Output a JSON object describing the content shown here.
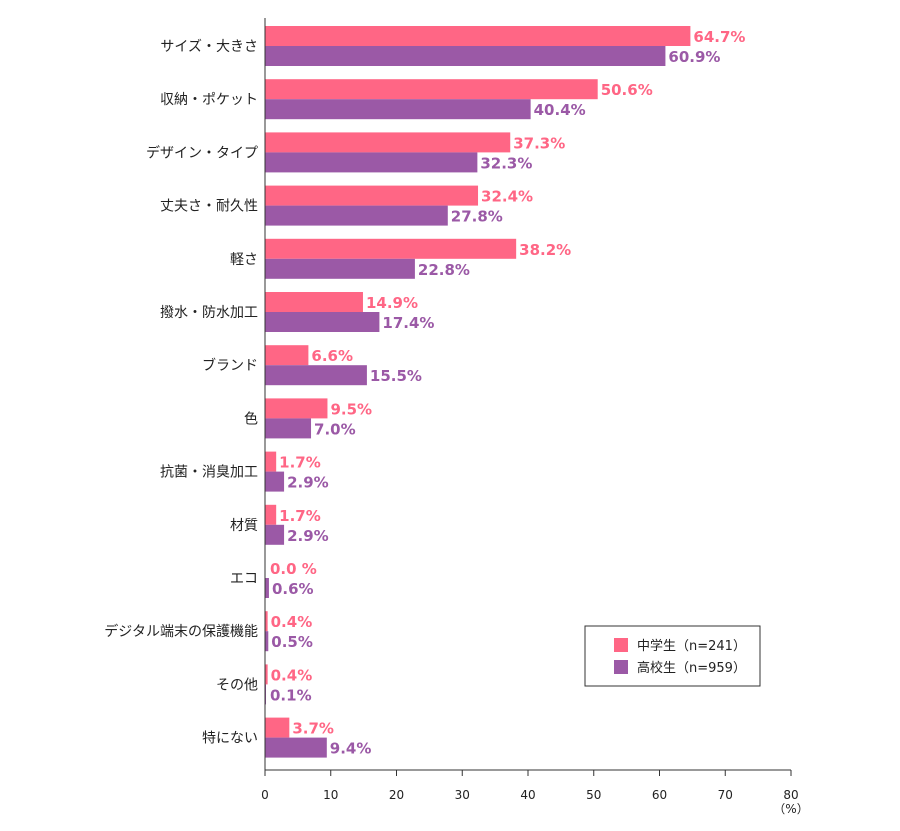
{
  "chart_data": {
    "type": "bar",
    "orientation": "horizontal",
    "categories": [
      "サイズ・大きさ",
      "収納・ポケット",
      "デザイン・タイプ",
      "丈夫さ・耐久性",
      "軽さ",
      "撥水・防水加工",
      "ブランド",
      "色",
      "抗菌・消臭加工",
      "材質",
      "エコ",
      "デジタル端末の保護機能",
      "その他",
      "特にない"
    ],
    "series": [
      {
        "name": "中学生（n=241）",
        "color": "#ff6685",
        "values": [
          64.7,
          50.6,
          37.3,
          32.4,
          38.2,
          14.9,
          6.6,
          9.5,
          1.7,
          1.7,
          0.0,
          0.4,
          0.4,
          3.7
        ],
        "labels": [
          "64.7%",
          "50.6%",
          "37.3%",
          "32.4%",
          "38.2%",
          "14.9%",
          "6.6%",
          "9.5%",
          "1.7%",
          "1.7%",
          "0.0 %",
          "0.4%",
          "0.4%",
          "3.7%"
        ]
      },
      {
        "name": "高校生（n=959）",
        "color": "#9b59a6",
        "values": [
          60.9,
          40.4,
          32.3,
          27.8,
          22.8,
          17.4,
          15.5,
          7.0,
          2.9,
          2.9,
          0.6,
          0.5,
          0.1,
          9.4
        ],
        "labels": [
          "60.9%",
          "40.4%",
          "32.3%",
          "27.8%",
          "22.8%",
          "17.4%",
          "15.5%",
          "7.0%",
          "2.9%",
          "2.9%",
          "0.6%",
          "0.5%",
          "0.1%",
          "9.4%"
        ]
      }
    ],
    "xlim": [
      0,
      80
    ],
    "xticks": [
      0,
      10,
      20,
      30,
      40,
      50,
      60,
      70,
      80
    ],
    "xunit": "（%）",
    "legend_position": "bottom-right",
    "grid": false
  }
}
